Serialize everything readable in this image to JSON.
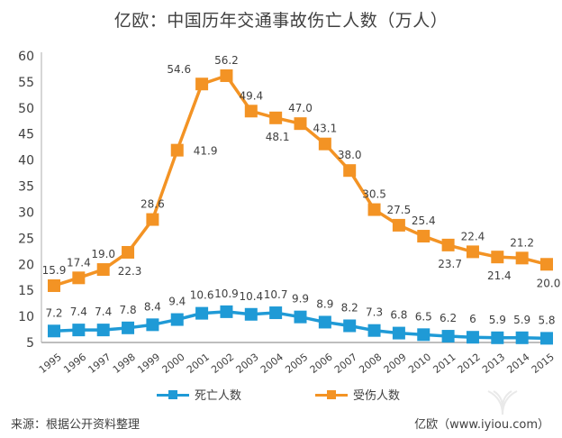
{
  "title": "亿欧：中国历年交通事故伤亡人数（万人）",
  "footer": {
    "source": "来源：根据公开资料整理",
    "brand": "亿欧（www.iyiou.com）"
  },
  "chart_data": {
    "type": "line",
    "title": "亿欧：中国历年交通事故伤亡人数（万人）",
    "xlabel": "",
    "ylabel": "",
    "ylim": [
      5,
      60
    ],
    "yticks": [
      5,
      10,
      15,
      20,
      25,
      30,
      35,
      40,
      45,
      50,
      55,
      60
    ],
    "grid": false,
    "legend_position": "bottom",
    "categories": [
      "1995",
      "1996",
      "1997",
      "1998",
      "1999",
      "2000",
      "2001",
      "2002",
      "2003",
      "2004",
      "2005",
      "2006",
      "2007",
      "2008",
      "2009",
      "2010",
      "2011",
      "2012",
      "2013",
      "2014",
      "2015"
    ],
    "series": [
      {
        "name": "死亡人数",
        "color": "#1f9ad6",
        "values": [
          7.2,
          7.4,
          7.4,
          7.8,
          8.4,
          9.4,
          10.6,
          10.9,
          10.4,
          10.7,
          9.9,
          8.9,
          8.2,
          7.3,
          6.8,
          6.5,
          6.2,
          6,
          5.9,
          5.9,
          5.8
        ],
        "labels": [
          "7.2",
          "7.4",
          "7.4",
          "7.8",
          "8.4",
          "9.4",
          "10.6",
          "10.9",
          "10.4",
          "10.7",
          "9.9",
          "8.9",
          "8.2",
          "7.3",
          "6.8",
          "6.5",
          "6.2",
          "6",
          "5.9",
          "5.9",
          "5.8"
        ]
      },
      {
        "name": "受伤人数",
        "color": "#f39324",
        "values": [
          15.9,
          17.4,
          19.0,
          22.3,
          28.6,
          41.9,
          54.6,
          56.2,
          49.4,
          48.1,
          47.0,
          43.1,
          38.0,
          30.5,
          27.5,
          25.4,
          23.7,
          22.4,
          21.4,
          21.2,
          20.0
        ],
        "labels": [
          "15.9",
          "17.4",
          "19.0",
          "22.3",
          "28.6",
          "41.9",
          "54.6",
          "56.2",
          "49.4",
          "48.1",
          "47.0",
          "43.1",
          "38.0",
          "30.5",
          "27.5",
          "25.4",
          "23.7",
          "22.4",
          "21.4",
          "21.2",
          "20.0"
        ],
        "label_side": [
          "above",
          "above",
          "above",
          "below",
          "above",
          "right",
          "left",
          "above",
          "above",
          "below",
          "above",
          "above",
          "above",
          "above",
          "above",
          "above",
          "below",
          "above",
          "below",
          "above",
          "below"
        ]
      }
    ]
  }
}
